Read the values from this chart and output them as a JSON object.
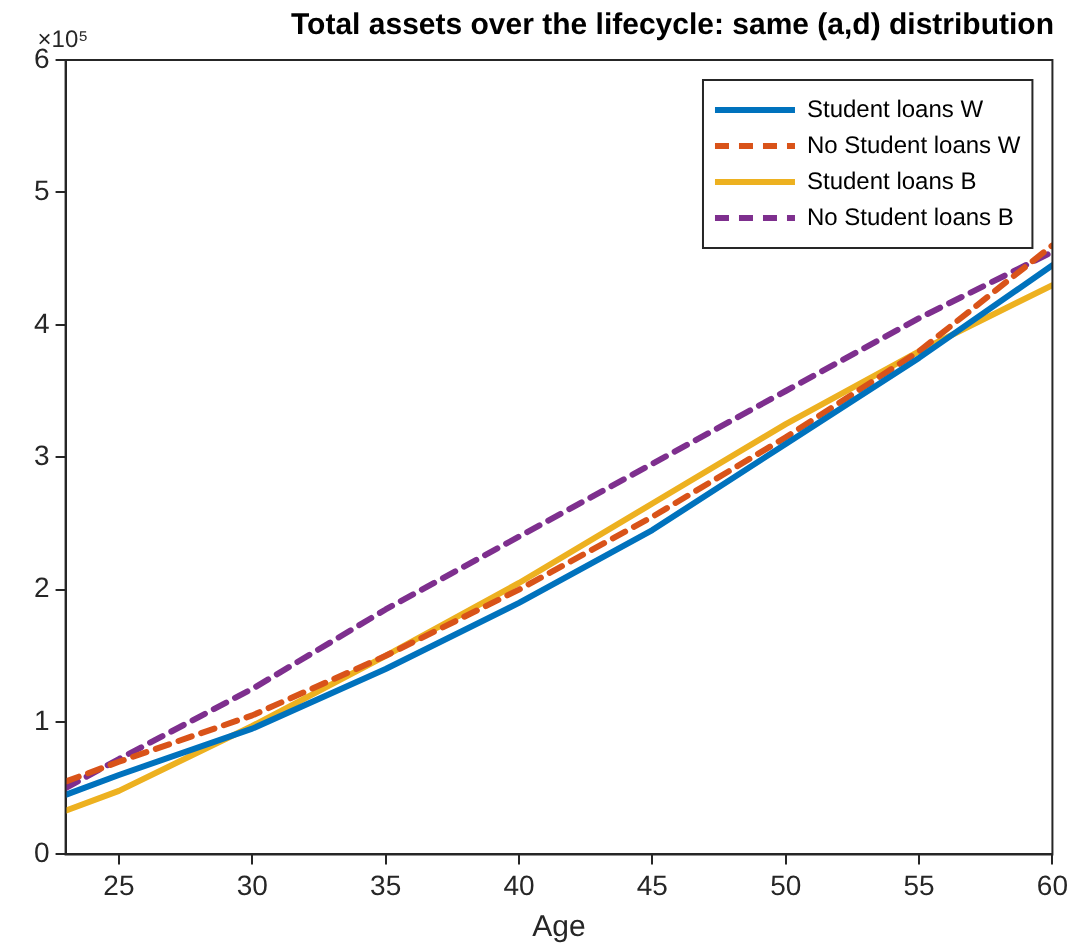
{
  "chart_data": {
    "type": "line",
    "title": "Total assets over the lifecycle: same (a,d) distribution",
    "xlabel": "Age",
    "annotations": [
      "×10⁵"
    ],
    "xlim": [
      23,
      60
    ],
    "xticks": [
      25,
      30,
      35,
      40,
      45,
      50,
      55,
      60
    ],
    "ylim": [
      0,
      6
    ],
    "yticks": [
      0,
      1,
      2,
      3,
      4,
      5,
      6
    ],
    "legend": "top right",
    "marker": "none",
    "x": [
      23,
      25,
      30,
      35,
      40,
      45,
      50,
      55,
      60
    ],
    "series": [
      {
        "name": "Student loans W",
        "color": "#0072bd",
        "line_style": "solid",
        "values": [
          0.45,
          0.6,
          0.95,
          1.4,
          1.9,
          2.45,
          3.1,
          3.75,
          4.45
        ]
      },
      {
        "name": "No Student loans W",
        "color": "#d95319",
        "line_style": "dashed",
        "values": [
          0.55,
          0.7,
          1.05,
          1.5,
          2.0,
          2.55,
          3.15,
          3.8,
          4.6
        ]
      },
      {
        "name": "Student loans B",
        "color": "#edb120",
        "line_style": "solid",
        "values": [
          0.33,
          0.48,
          0.97,
          1.5,
          2.05,
          2.65,
          3.25,
          3.8,
          4.3
        ]
      },
      {
        "name": "No Student loans B",
        "color": "#7e2f8e",
        "line_style": "dashed",
        "values": [
          0.5,
          0.72,
          1.25,
          1.85,
          2.4,
          2.95,
          3.5,
          4.05,
          4.55
        ]
      }
    ]
  }
}
